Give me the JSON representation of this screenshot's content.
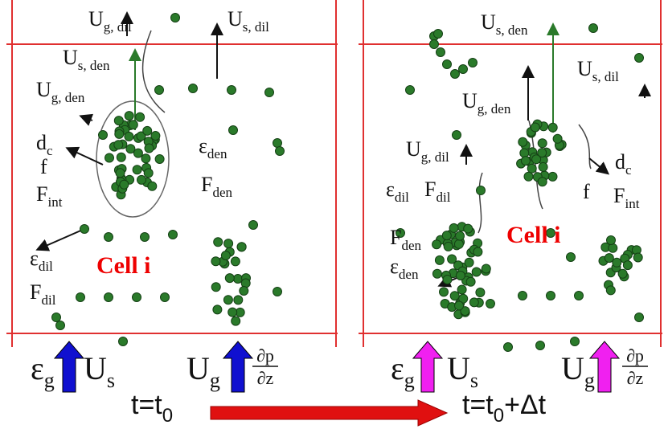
{
  "left_panel": {
    "labels": [
      {
        "main": "U",
        "sub": "g, dil"
      },
      {
        "main": "U",
        "sub": "s, dil"
      },
      {
        "main": "U",
        "sub": "s, den"
      },
      {
        "main": "U",
        "sub": "g, den"
      },
      {
        "main": "d",
        "sub": "c"
      },
      {
        "main": "f"
      },
      {
        "main": "F",
        "sub": "int"
      },
      {
        "main": "ε",
        "sub": "den"
      },
      {
        "main": "F",
        "sub": "den"
      },
      {
        "main": "ε",
        "sub": "dil"
      },
      {
        "main": "F",
        "sub": "dil"
      }
    ],
    "cell_label": "Cell  i",
    "bottom": [
      {
        "main": "ε",
        "sub": "g"
      },
      {
        "main": "U",
        "sub": "s"
      },
      {
        "main": "U",
        "sub": "g"
      }
    ],
    "fraction": {
      "numerator": "∂p",
      "denominator": "∂z"
    },
    "time": {
      "main": "t=t",
      "sub": "0"
    }
  },
  "right_panel": {
    "labels": [
      {
        "main": "U",
        "sub": "s, den"
      },
      {
        "main": "U",
        "sub": "s, dil"
      },
      {
        "main": "U",
        "sub": "g, den"
      },
      {
        "main": "U",
        "sub": "g, dil"
      },
      {
        "main": "ε",
        "sub": "dil"
      },
      {
        "main": "F",
        "sub": "dil"
      },
      {
        "main": "d",
        "sub": "c"
      },
      {
        "main": "f"
      },
      {
        "main": "F",
        "sub": "int"
      },
      {
        "main": "F",
        "sub": "den"
      },
      {
        "main": "ε",
        "sub": "den"
      }
    ],
    "cell_label": "Cell  i",
    "bottom": [
      {
        "main": "ε",
        "sub": "g"
      },
      {
        "main": "U",
        "sub": "s"
      },
      {
        "main": "U",
        "sub": "g"
      }
    ],
    "fraction": {
      "numerator": "∂p",
      "denominator": "∂z"
    },
    "time": {
      "main": "t=t",
      "sub": "0",
      "tail": "+Δt"
    }
  }
}
